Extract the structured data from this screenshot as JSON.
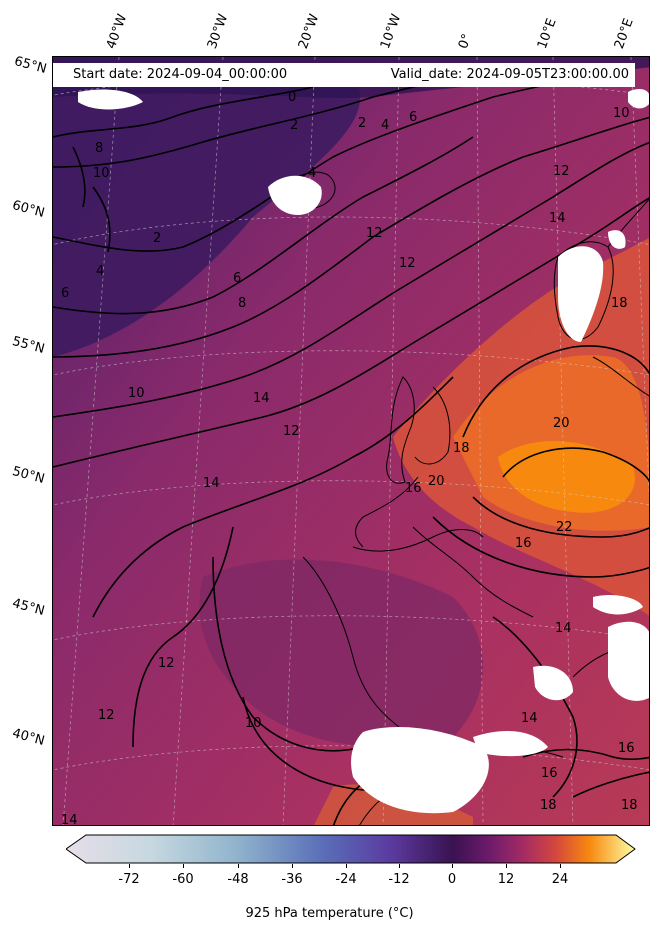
{
  "header": {
    "start_date": "Start date: 2024-09-04_00:00:00",
    "valid_date": "Valid_date: 2024-09-05T23:00:00.00"
  },
  "lon_labels": [
    "40°W",
    "30°W",
    "20°W",
    "10°W",
    "0°",
    "10°E",
    "20°E"
  ],
  "lat_labels": [
    "65°N",
    "60°N",
    "55°N",
    "50°N",
    "45°N",
    "40°N"
  ],
  "contour_labels": [
    "0",
    "2",
    "4",
    "6",
    "8",
    "10",
    "12",
    "14",
    "16",
    "18",
    "20",
    "22"
  ],
  "colorbar": {
    "label": "925 hPa temperature ($^\\circ$C)",
    "label_display": "925 hPa temperature (°C)",
    "ticks": [
      "-72",
      "-60",
      "-48",
      "-36",
      "-24",
      "-12",
      "0",
      "12",
      "24"
    ],
    "range": [
      -84,
      36
    ],
    "colormap": "inferno-like (white-blue for negatives, purple-orange-yellow for positives)"
  },
  "colors": {
    "cold_purple": "#3b1a5e",
    "mid_magenta": "#8e2a6a",
    "warm_red": "#c2414a",
    "hot_orange": "#e8692a",
    "peak_orange": "#f8890f"
  }
}
